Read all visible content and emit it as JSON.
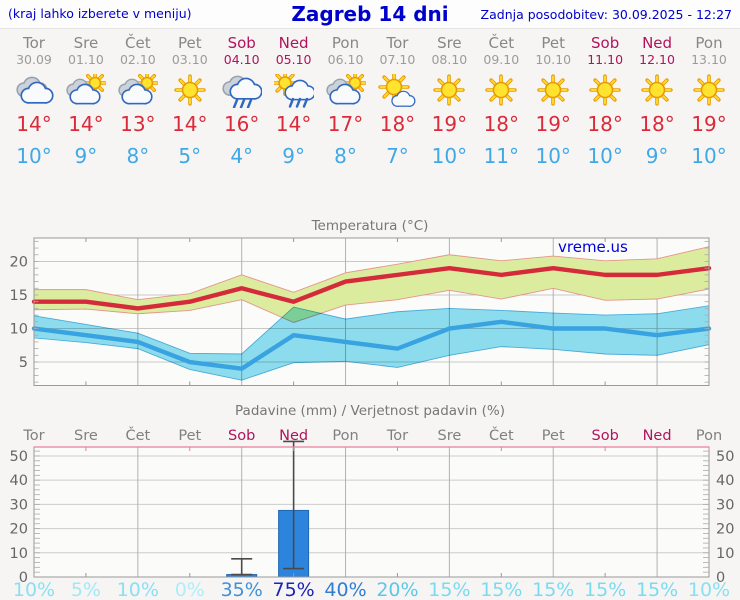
{
  "header": {
    "left_note": "(kraj lahko izberete v meniju)",
    "title": "Zagreb 14 dni",
    "updated": "Zadnja posodobitev: 30.09.2025 - 12:27"
  },
  "watermark": "vreme.us",
  "colors": {
    "accent_blue": "#0000cc",
    "weekend": "#b1135c",
    "weekday": "#878787",
    "date_gray": "#9b9b9b",
    "high_temp": "#db2a3a",
    "low_temp": "#3fa8e6",
    "max_line": "#d42a3a",
    "max_band": "#dcec9e",
    "max_band_edge": "#e4958c",
    "min_line": "#38a3e0",
    "min_band": "#8fe0f2",
    "min_band_edge": "#4aaede",
    "bar_fill": "#2d84dc",
    "bar_edge": "#1f67b4",
    "whisker": "#4a4a4a",
    "chart_title": "#777777",
    "axis_label": "#666666",
    "precip_top_border": "#e87f9c"
  },
  "days": [
    {
      "name": "Tor",
      "date": "30.09",
      "weekend": false,
      "icon": "cloudy",
      "high": "14°",
      "low": "10°",
      "prob": "10%",
      "prob_color": "#89e0f2"
    },
    {
      "name": "Sre",
      "date": "01.10",
      "weekend": false,
      "icon": "partly",
      "high": "14°",
      "low": "9°",
      "prob": "5%",
      "prob_color": "#9fe9f6"
    },
    {
      "name": "Čet",
      "date": "02.10",
      "weekend": false,
      "icon": "partly",
      "high": "13°",
      "low": "8°",
      "prob": "10%",
      "prob_color": "#89e0f2"
    },
    {
      "name": "Pet",
      "date": "03.10",
      "weekend": false,
      "icon": "sunny",
      "high": "14°",
      "low": "5°",
      "prob": "0%",
      "prob_color": "#adeef9"
    },
    {
      "name": "Sob",
      "date": "04.10",
      "weekend": true,
      "icon": "rain",
      "high": "16°",
      "low": "4°",
      "prob": "35%",
      "prob_color": "#3e92da"
    },
    {
      "name": "Ned",
      "date": "05.10",
      "weekend": true,
      "icon": "sunrain",
      "high": "14°",
      "low": "9°",
      "prob": "75%",
      "prob_color": "#1c23b8"
    },
    {
      "name": "Pon",
      "date": "06.10",
      "weekend": false,
      "icon": "partly",
      "high": "17°",
      "low": "8°",
      "prob": "40%",
      "prob_color": "#2f7ed2"
    },
    {
      "name": "Tor",
      "date": "07.10",
      "weekend": false,
      "icon": "mostlysunny",
      "high": "18°",
      "low": "7°",
      "prob": "20%",
      "prob_color": "#5cc8e9"
    },
    {
      "name": "Sre",
      "date": "08.10",
      "weekend": false,
      "icon": "sunny",
      "high": "19°",
      "low": "10°",
      "prob": "15%",
      "prob_color": "#79dbf0"
    },
    {
      "name": "Čet",
      "date": "09.10",
      "weekend": false,
      "icon": "sunny",
      "high": "18°",
      "low": "11°",
      "prob": "15%",
      "prob_color": "#79dbf0"
    },
    {
      "name": "Pet",
      "date": "10.10",
      "weekend": false,
      "icon": "sunny",
      "high": "19°",
      "low": "10°",
      "prob": "15%",
      "prob_color": "#79dbf0"
    },
    {
      "name": "Sob",
      "date": "11.10",
      "weekend": true,
      "icon": "sunny",
      "high": "18°",
      "low": "10°",
      "prob": "15%",
      "prob_color": "#79dbf0"
    },
    {
      "name": "Ned",
      "date": "12.10",
      "weekend": true,
      "icon": "sunny",
      "high": "18°",
      "low": "9°",
      "prob": "15%",
      "prob_color": "#79dbf0"
    },
    {
      "name": "Pon",
      "date": "13.10",
      "weekend": false,
      "icon": "sunny",
      "high": "19°",
      "low": "10°",
      "prob": "10%",
      "prob_color": "#89e0f2"
    }
  ],
  "chart_data": [
    {
      "type": "area",
      "title": "Temperatura (°C)",
      "categories": [
        "Tor",
        "Sre",
        "Čet",
        "Pet",
        "Sob",
        "Ned",
        "Pon",
        "Tor",
        "Sre",
        "Čet",
        "Pet",
        "Sob",
        "Ned",
        "Pon"
      ],
      "ylim": [
        1.5,
        23.5
      ],
      "yticks": [
        5,
        10,
        15,
        20
      ],
      "grid": true,
      "legend": false,
      "series": [
        {
          "name": "max temperatura",
          "values": [
            14,
            14,
            13,
            14,
            16,
            14,
            17,
            18,
            19,
            18,
            19,
            18,
            18,
            19
          ],
          "band_upper": [
            15.8,
            15.8,
            14.3,
            15.2,
            18.0,
            15.4,
            18.3,
            19.6,
            21.0,
            20.1,
            20.8,
            20.1,
            20.4,
            22.2
          ],
          "band_lower": [
            12.8,
            12.9,
            12.2,
            12.7,
            14.3,
            10.9,
            13.5,
            14.3,
            15.7,
            14.4,
            16.0,
            14.2,
            14.4,
            15.9
          ]
        },
        {
          "name": "min temperatura",
          "values": [
            10,
            9,
            8,
            5,
            4,
            9,
            8,
            7,
            10,
            11,
            10,
            10,
            9,
            10
          ],
          "band_upper": [
            11.9,
            10.6,
            9.3,
            6.3,
            6.2,
            13.2,
            11.4,
            12.5,
            13.0,
            12.7,
            12.3,
            12.0,
            12.2,
            13.4
          ],
          "band_lower": [
            8.6,
            7.9,
            7.0,
            3.9,
            2.3,
            4.9,
            5.1,
            4.2,
            6.0,
            7.3,
            6.9,
            6.2,
            6.0,
            7.6
          ]
        }
      ]
    },
    {
      "type": "bar",
      "title": "Padavine (mm) / Verjetnost padavin (%)",
      "categories": [
        "Tor",
        "Sre",
        "Čet",
        "Pet",
        "Sob",
        "Ned",
        "Pon",
        "Tor",
        "Sre",
        "Čet",
        "Pet",
        "Sob",
        "Ned",
        "Pon"
      ],
      "ylim": [
        0,
        53.7
      ],
      "yticks": [
        0,
        10,
        20,
        30,
        40,
        50
      ],
      "grid": true,
      "values": [
        0,
        0,
        0,
        0,
        1,
        27.5,
        0,
        0,
        0,
        0,
        0,
        0,
        0,
        0
      ],
      "whisker_low": [
        null,
        null,
        null,
        null,
        1,
        3.5,
        null,
        null,
        null,
        null,
        null,
        null,
        null,
        null
      ],
      "whisker_high": [
        null,
        null,
        null,
        null,
        7.5,
        56,
        null,
        null,
        null,
        null,
        null,
        null,
        null,
        null
      ],
      "probabilities": [
        "10%",
        "5%",
        "10%",
        "0%",
        "35%",
        "75%",
        "40%",
        "20%",
        "15%",
        "15%",
        "15%",
        "15%",
        "15%",
        "10%"
      ]
    }
  ]
}
